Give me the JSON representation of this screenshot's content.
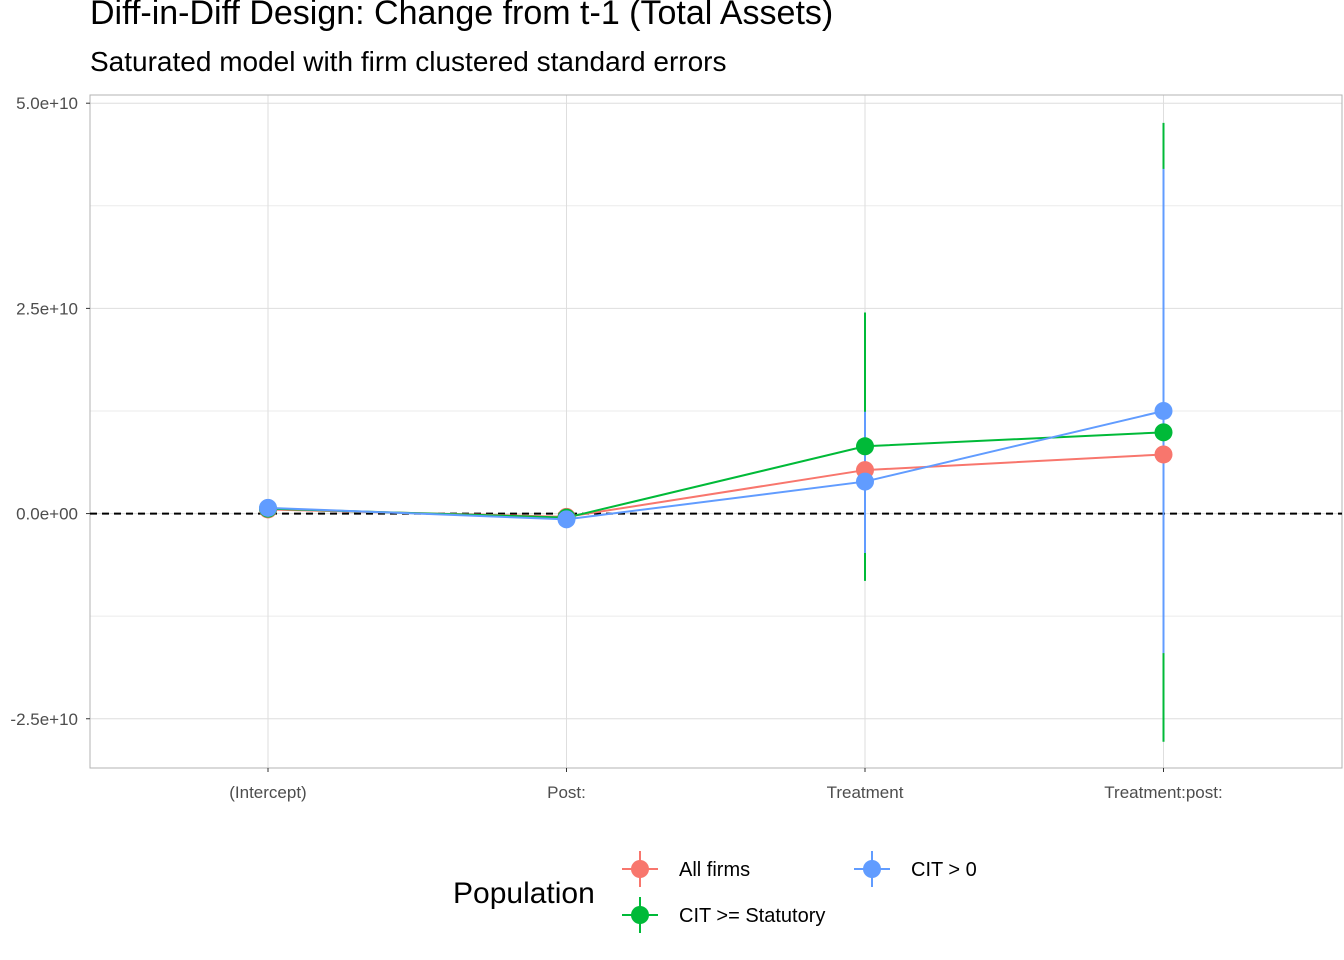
{
  "chart_data": {
    "type": "scatter",
    "title": "Diff-in-Diff Design: Change from t-1 (Total Assets)",
    "subtitle": "Saturated model with firm clustered standard errors",
    "xlabel": "",
    "ylabel": "",
    "categories": [
      "(Intercept)",
      "Post:",
      "Treatment",
      "Treatment:post:"
    ],
    "ylim": [
      -31000000000,
      51000000000
    ],
    "yticks": [
      -25000000000,
      0,
      25000000000,
      50000000000
    ],
    "ytick_labels": [
      "-2.5e+10",
      "0.0e+00",
      "2.5e+10",
      "5.0e+10"
    ],
    "reference_line": 0,
    "grid": true,
    "legend": {
      "title": "Population",
      "position": "bottom"
    },
    "series": [
      {
        "name": "All firms",
        "color": "#F8766D",
        "values": [
          500000000,
          -400000000,
          5300000000,
          7200000000
        ],
        "lower": [
          null,
          null,
          null,
          null
        ],
        "upper": [
          null,
          null,
          null,
          null
        ]
      },
      {
        "name": "CIT >= Statutory",
        "color": "#00BA38",
        "values": [
          600000000,
          -500000000,
          8200000000,
          9900000000
        ],
        "lower": [
          null,
          null,
          -8200000000,
          -27800000000
        ],
        "upper": [
          null,
          null,
          24500000000,
          47600000000
        ]
      },
      {
        "name": "CIT > 0",
        "color": "#619CFF",
        "values": [
          700000000,
          -700000000,
          3900000000,
          12500000000
        ],
        "lower": [
          null,
          null,
          -4800000000,
          -17000000000
        ],
        "upper": [
          null,
          null,
          12400000000,
          42000000000
        ]
      }
    ]
  }
}
